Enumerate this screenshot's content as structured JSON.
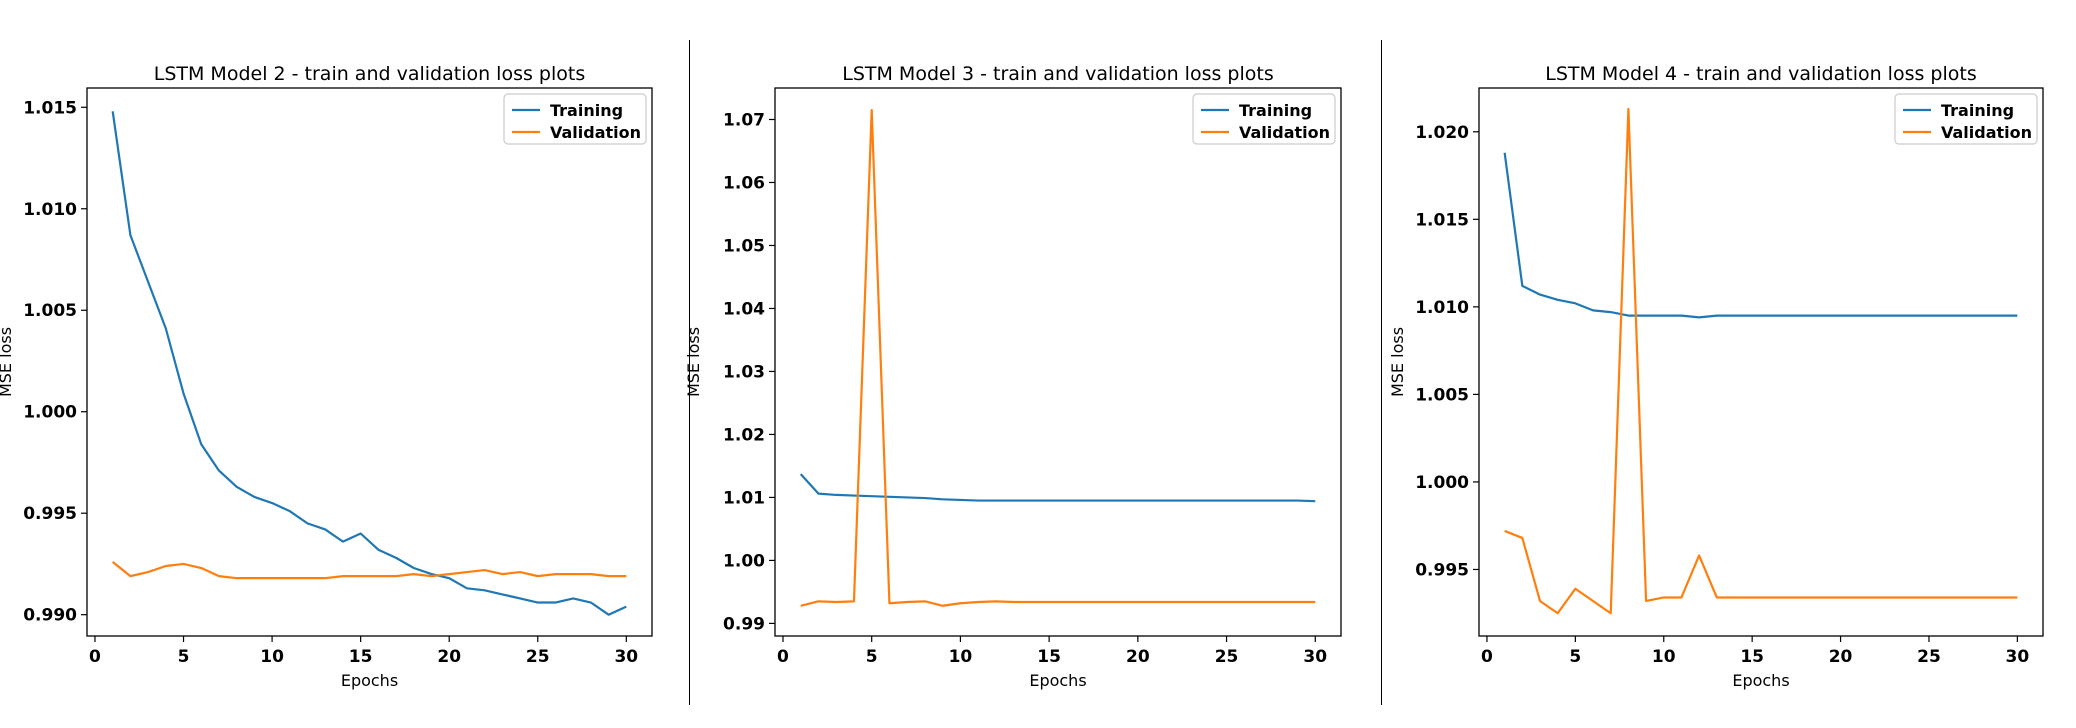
{
  "chart_data": [
    {
      "type": "line",
      "title": "LSTM Model 2 - train and validation loss plots",
      "xlabel": "Epochs",
      "ylabel": "MSE loss",
      "xlim": [
        -0.45,
        31.45
      ],
      "ylim": [
        0.98895,
        1.01595
      ],
      "xticks": [
        0,
        5,
        10,
        15,
        20,
        25,
        30
      ],
      "xtick_labels": [
        "0",
        "5",
        "10",
        "15",
        "20",
        "25",
        "30"
      ],
      "yticks": [
        0.99,
        0.995,
        1.0,
        1.005,
        1.01,
        1.015
      ],
      "ytick_labels": [
        "0.990",
        "0.995",
        "1.000",
        "1.005",
        "1.010",
        "1.015"
      ],
      "legend": "top-right",
      "grid": false,
      "x": [
        1,
        2,
        3,
        4,
        5,
        6,
        7,
        8,
        9,
        10,
        11,
        12,
        13,
        14,
        15,
        16,
        17,
        18,
        19,
        20,
        21,
        22,
        23,
        24,
        25,
        26,
        27,
        28,
        29,
        30
      ],
      "series": [
        {
          "name": "Training",
          "color": "#1f77b4",
          "values": [
            1.0148,
            1.0087,
            1.0064,
            1.0041,
            1.0009,
            0.9984,
            0.9971,
            0.9963,
            0.9958,
            0.9955,
            0.9951,
            0.9945,
            0.9942,
            0.9936,
            0.994,
            0.9932,
            0.9928,
            0.9923,
            0.992,
            0.9918,
            0.9913,
            0.9912,
            0.991,
            0.9908,
            0.9906,
            0.9906,
            0.9908,
            0.9906,
            0.99,
            0.9904
          ]
        },
        {
          "name": "Validation",
          "color": "#ff7f0e",
          "values": [
            0.9926,
            0.9919,
            0.9921,
            0.9924,
            0.9925,
            0.9923,
            0.9919,
            0.9918,
            0.9918,
            0.9918,
            0.9918,
            0.9918,
            0.9918,
            0.9919,
            0.9919,
            0.9919,
            0.9919,
            0.992,
            0.9919,
            0.992,
            0.9921,
            0.9922,
            0.992,
            0.9921,
            0.9919,
            0.992,
            0.992,
            0.992,
            0.9919,
            0.9919
          ]
        }
      ]
    },
    {
      "type": "line",
      "title": "LSTM Model 3 - train and validation loss plots",
      "xlabel": "Epochs",
      "ylabel": "MSE loss",
      "xlim": [
        -0.45,
        31.45
      ],
      "ylim": [
        0.988,
        1.075
      ],
      "xticks": [
        0,
        5,
        10,
        15,
        20,
        25,
        30
      ],
      "xtick_labels": [
        "0",
        "5",
        "10",
        "15",
        "20",
        "25",
        "30"
      ],
      "yticks": [
        0.99,
        1.0,
        1.01,
        1.02,
        1.03,
        1.04,
        1.05,
        1.06,
        1.07
      ],
      "ytick_labels": [
        "0.99",
        "1.00",
        "1.01",
        "1.02",
        "1.03",
        "1.04",
        "1.05",
        "1.06",
        "1.07"
      ],
      "legend": "top-right",
      "grid": false,
      "x": [
        1,
        2,
        3,
        4,
        5,
        6,
        7,
        8,
        9,
        10,
        11,
        12,
        13,
        14,
        15,
        16,
        17,
        18,
        19,
        20,
        21,
        22,
        23,
        24,
        25,
        26,
        27,
        28,
        29,
        30
      ],
      "series": [
        {
          "name": "Training",
          "color": "#1f77b4",
          "values": [
            1.0137,
            1.0106,
            1.0104,
            1.0103,
            1.0102,
            1.0101,
            1.01,
            1.0099,
            1.0097,
            1.0096,
            1.0095,
            1.0095,
            1.0095,
            1.0095,
            1.0095,
            1.0095,
            1.0095,
            1.0095,
            1.0095,
            1.0095,
            1.0095,
            1.0095,
            1.0095,
            1.0095,
            1.0095,
            1.0095,
            1.0095,
            1.0095,
            1.0095,
            1.0094
          ]
        },
        {
          "name": "Validation",
          "color": "#ff7f0e",
          "values": [
            0.9928,
            0.9935,
            0.9934,
            0.9935,
            1.0715,
            0.9932,
            0.9934,
            0.9935,
            0.9928,
            0.9932,
            0.9934,
            0.9935,
            0.9934,
            0.9934,
            0.9934,
            0.9934,
            0.9934,
            0.9934,
            0.9934,
            0.9934,
            0.9934,
            0.9934,
            0.9934,
            0.9934,
            0.9934,
            0.9934,
            0.9934,
            0.9934,
            0.9934,
            0.9934
          ]
        }
      ]
    },
    {
      "type": "line",
      "title": "LSTM Model 4 - train and validation loss plots",
      "xlabel": "Epochs",
      "ylabel": "MSE loss",
      "xlim": [
        -0.45,
        31.45
      ],
      "ylim": [
        0.9912,
        1.0225
      ],
      "xticks": [
        0,
        5,
        10,
        15,
        20,
        25,
        30
      ],
      "xtick_labels": [
        "0",
        "5",
        "10",
        "15",
        "20",
        "25",
        "30"
      ],
      "yticks": [
        0.995,
        1.0,
        1.005,
        1.01,
        1.015,
        1.02
      ],
      "ytick_labels": [
        "0.995",
        "1.000",
        "1.005",
        "1.010",
        "1.015",
        "1.020"
      ],
      "legend": "top-right",
      "grid": false,
      "x": [
        1,
        2,
        3,
        4,
        5,
        6,
        7,
        8,
        9,
        10,
        11,
        12,
        13,
        14,
        15,
        16,
        17,
        18,
        19,
        20,
        21,
        22,
        23,
        24,
        25,
        26,
        27,
        28,
        29,
        30
      ],
      "series": [
        {
          "name": "Training",
          "color": "#1f77b4",
          "values": [
            1.0188,
            1.0112,
            1.0107,
            1.0104,
            1.0102,
            1.0098,
            1.0097,
            1.0095,
            1.0095,
            1.0095,
            1.0095,
            1.0094,
            1.0095,
            1.0095,
            1.0095,
            1.0095,
            1.0095,
            1.0095,
            1.0095,
            1.0095,
            1.0095,
            1.0095,
            1.0095,
            1.0095,
            1.0095,
            1.0095,
            1.0095,
            1.0095,
            1.0095,
            1.0095
          ]
        },
        {
          "name": "Validation",
          "color": "#ff7f0e",
          "values": [
            0.9972,
            0.9968,
            0.9932,
            0.9925,
            0.9939,
            0.9932,
            0.9925,
            1.0213,
            0.9932,
            0.9934,
            0.9934,
            0.9958,
            0.9934,
            0.9934,
            0.9934,
            0.9934,
            0.9934,
            0.9934,
            0.9934,
            0.9934,
            0.9934,
            0.9934,
            0.9934,
            0.9934,
            0.9934,
            0.9934,
            0.9934,
            0.9934,
            0.9934,
            0.9934
          ]
        }
      ]
    }
  ]
}
